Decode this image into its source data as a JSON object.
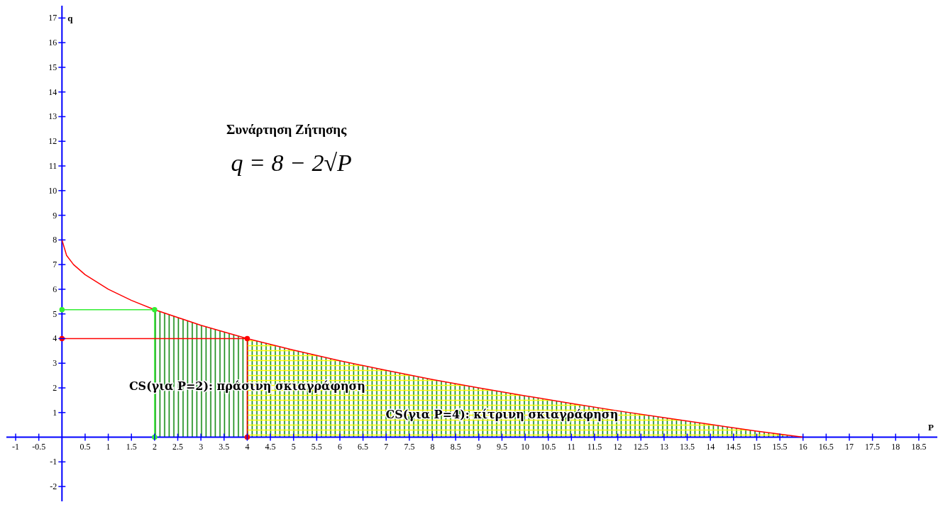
{
  "chart_data": {
    "type": "line",
    "title": "Συνάρτηση Ζήτησης",
    "subtitle": "q = 8 − 2√P",
    "xlabel": "P",
    "ylabel": "q",
    "xlim": [
      -1.2,
      18.9
    ],
    "ylim": [
      -2.6,
      17.5
    ],
    "xticks": [
      -1,
      -0.5,
      0.5,
      1,
      1.5,
      2,
      2.5,
      3,
      3.5,
      4,
      4.5,
      5,
      5.5,
      6,
      6.5,
      7,
      7.5,
      8,
      8.5,
      9,
      9.5,
      10,
      10.5,
      11,
      11.5,
      12,
      12.5,
      13,
      13.5,
      14,
      14.5,
      15,
      15.5,
      16,
      16.5,
      17,
      17.5,
      18,
      18.5
    ],
    "yticks": [
      -2,
      -1,
      1,
      2,
      3,
      4,
      5,
      6,
      7,
      8,
      9,
      10,
      11,
      12,
      13,
      14,
      15,
      16,
      17
    ],
    "grid": false,
    "series": [
      {
        "type": "area",
        "color": "#008000",
        "x": [
          2,
          3,
          4,
          5,
          6,
          7,
          8,
          9,
          10,
          11,
          12,
          13,
          14,
          15,
          16
        ],
        "values": [
          5.17,
          4.54,
          4,
          3.53,
          3.1,
          2.71,
          2.34,
          2,
          1.68,
          1.37,
          1.07,
          0.79,
          0.52,
          0.25,
          0
        ]
      },
      {
        "type": "area",
        "color": "#ffff00",
        "x": [
          4,
          5,
          6,
          7,
          8,
          9,
          10,
          11,
          12,
          13,
          14,
          15,
          16
        ],
        "values": [
          4,
          3.53,
          3.1,
          2.71,
          2.34,
          2,
          1.68,
          1.37,
          1.07,
          0.79,
          0.52,
          0.25,
          0
        ]
      },
      {
        "color": "#ff0000",
        "marker": "none",
        "x": [
          0,
          0.1,
          0.25,
          0.5,
          1,
          1.5,
          2,
          3,
          4,
          5,
          6,
          7,
          8,
          9,
          10,
          11,
          12,
          13,
          14,
          15,
          16
        ],
        "values": [
          8,
          7.37,
          7,
          6.59,
          6,
          5.55,
          5.17,
          4.54,
          4,
          3.53,
          3.1,
          2.71,
          2.34,
          2,
          1.68,
          1.37,
          1.07,
          0.79,
          0.52,
          0.25,
          0
        ]
      },
      {
        "color": "#33ee33",
        "marker": "circle",
        "x": [
          0,
          2,
          2
        ],
        "values": [
          5.17,
          5.17,
          0
        ]
      },
      {
        "color": "#ff0000",
        "marker": "circle",
        "x": [
          0,
          4,
          4
        ],
        "values": [
          4,
          4,
          0
        ]
      }
    ],
    "annotations": [
      "CS(για P=2): πράσινη σκιαγράφηση",
      "CS(για P=4): κίτρινη σκιαγράφηση"
    ]
  }
}
